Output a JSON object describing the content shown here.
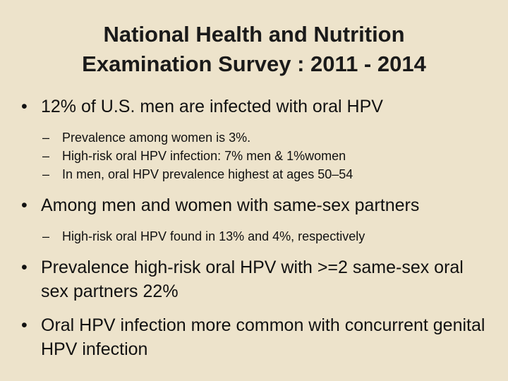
{
  "slide": {
    "title_lines": [
      "National Health and Nutrition",
      "Examination Survey : 2011 - 2014"
    ],
    "bullet_symbol": "•",
    "dash_symbol": "–",
    "bullets": [
      {
        "text": "12% of U.S. men are infected with oral HPV",
        "sub": [
          "Prevalence among women is 3%.",
          "High-risk oral HPV infection: 7% men & 1%women",
          "In men, oral HPV prevalence highest at ages 50–54"
        ]
      },
      {
        "text": "Among men and women with same-sex partners",
        "sub": [
          "High-risk oral HPV found in 13% and 4%, respectively"
        ]
      },
      {
        "text": "Prevalence high-risk oral HPV with >=2 same-sex oral sex partners 22%"
      },
      {
        "text": "Oral HPV infection more common with concurrent genital HPV infection"
      }
    ]
  }
}
